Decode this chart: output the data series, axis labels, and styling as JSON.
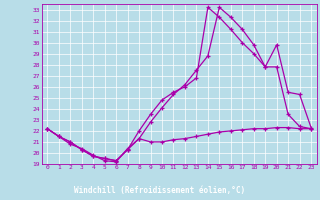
{
  "xlabel": "Windchill (Refroidissement éolien,°C)",
  "bg_color": "#b8dde8",
  "line_color": "#aa00aa",
  "grid_color": "#ffffff",
  "xlabel_bg": "#330066",
  "xlabel_color": "#ffffff",
  "xlim": [
    -0.5,
    23.5
  ],
  "ylim": [
    19,
    33.5
  ],
  "yticks": [
    19,
    20,
    21,
    22,
    23,
    24,
    25,
    26,
    27,
    28,
    29,
    30,
    31,
    32,
    33
  ],
  "xticks": [
    0,
    1,
    2,
    3,
    4,
    5,
    6,
    7,
    8,
    9,
    10,
    11,
    12,
    13,
    14,
    15,
    16,
    17,
    18,
    19,
    20,
    21,
    22,
    23
  ],
  "series": [
    {
      "x": [
        0,
        1,
        2,
        3,
        4,
        5,
        6,
        7,
        8,
        9,
        10,
        11,
        12,
        13,
        14,
        15,
        16,
        17,
        18,
        19,
        20,
        21,
        22,
        23
      ],
      "y": [
        22.2,
        21.5,
        20.8,
        20.4,
        19.8,
        19.3,
        19.2,
        20.4,
        21.3,
        21.0,
        21.0,
        21.2,
        21.3,
        21.5,
        21.7,
        21.9,
        22.0,
        22.1,
        22.2,
        22.2,
        22.3,
        22.3,
        22.2,
        22.2
      ]
    },
    {
      "x": [
        0,
        1,
        2,
        3,
        4,
        5,
        6,
        7,
        8,
        9,
        10,
        11,
        12,
        13,
        14,
        15,
        16,
        17,
        18,
        19,
        20,
        21,
        22,
        23
      ],
      "y": [
        22.2,
        21.5,
        21.0,
        20.3,
        19.7,
        19.5,
        19.3,
        20.3,
        21.3,
        22.8,
        24.1,
        25.3,
        26.2,
        27.5,
        28.8,
        33.2,
        32.3,
        31.2,
        29.8,
        27.8,
        29.8,
        25.5,
        25.3,
        22.3
      ]
    },
    {
      "x": [
        0,
        1,
        2,
        3,
        4,
        5,
        6,
        7,
        8,
        9,
        10,
        11,
        12,
        13,
        14,
        15,
        16,
        17,
        18,
        19,
        20,
        21,
        22,
        23
      ],
      "y": [
        22.2,
        21.5,
        21.0,
        20.3,
        19.7,
        19.5,
        19.3,
        20.3,
        22.0,
        23.5,
        24.8,
        25.5,
        26.0,
        26.8,
        33.2,
        32.3,
        31.2,
        30.0,
        29.0,
        27.8,
        27.8,
        23.5,
        22.4,
        22.2
      ]
    }
  ]
}
